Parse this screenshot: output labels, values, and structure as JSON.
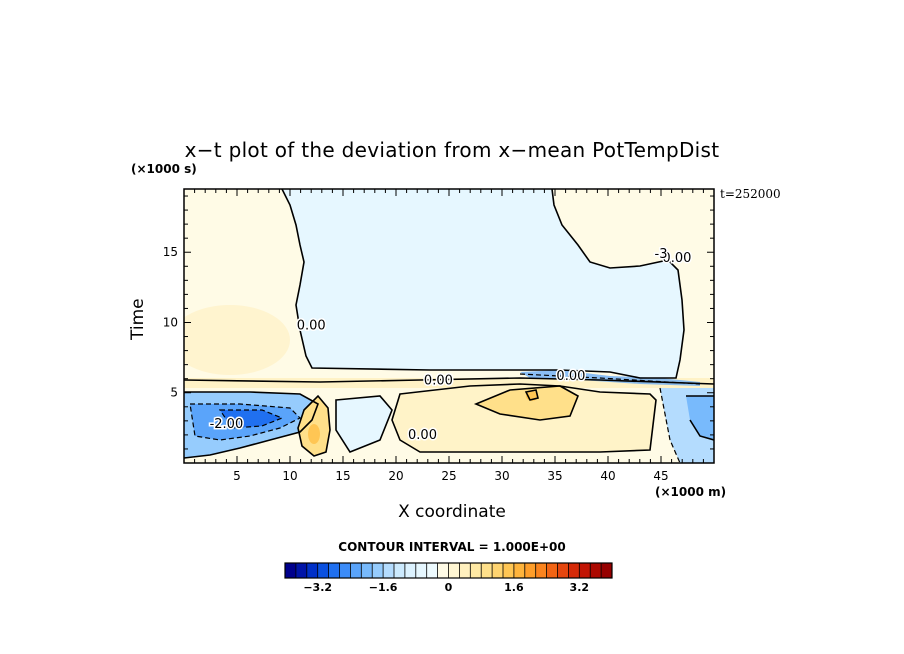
{
  "chart_data": {
    "type": "heatmap",
    "title": "x−t plot of the deviation from x−mean PotTempDist",
    "xlabel": "X coordinate",
    "ylabel": "Time",
    "x_unit": "(×1000 m)",
    "y_unit": "(×1000 s)",
    "timestamp": "t=252000",
    "xlim": [
      0,
      50
    ],
    "ylim": [
      0,
      19.5
    ],
    "x_ticks": [
      5,
      10,
      15,
      20,
      25,
      30,
      35,
      40,
      45
    ],
    "y_ticks": [
      5,
      10,
      15
    ],
    "contour_labels": [
      {
        "text": "-2.00",
        "x": 4,
        "y": 2.5
      },
      {
        "text": "0.00",
        "x": 12,
        "y": 9.5
      },
      {
        "text": "0.00",
        "x": 24,
        "y": 5.6
      },
      {
        "text": "0.00",
        "x": 22.5,
        "y": 1.7
      },
      {
        "text": "0.00",
        "x": 36.5,
        "y": 5.9
      },
      {
        "text": "0.00",
        "x": 46.5,
        "y": 14.3
      },
      {
        "text": "-3",
        "x": 45,
        "y": 14.6
      }
    ],
    "contour_interval_label": "CONTOUR INTERVAL = 1.000E+00",
    "colorbar": {
      "min": -4,
      "max": 4,
      "interval": 0.4,
      "tick_labels": [
        "−3.2",
        "−1.6",
        "0",
        "1.6",
        "3.2"
      ],
      "tick_values": [
        -3.2,
        -1.6,
        0,
        1.6,
        3.2
      ],
      "colors": [
        "#00008c",
        "#0014a8",
        "#0030c8",
        "#0a50e0",
        "#2070f0",
        "#3c8cf8",
        "#5aa4fa",
        "#78bafc",
        "#96ccfd",
        "#b4dcfe",
        "#cceafe",
        "#dcf2ff",
        "#e6f7ff",
        "#eefbff",
        "#fffbe6",
        "#fff6d2",
        "#fff0be",
        "#ffe9a4",
        "#ffe08a",
        "#ffd470",
        "#ffc654",
        "#ffb43c",
        "#ff9e2a",
        "#fb841e",
        "#f26414",
        "#e6460e",
        "#d62a08",
        "#c21404",
        "#ac0800",
        "#960000"
      ]
    }
  }
}
